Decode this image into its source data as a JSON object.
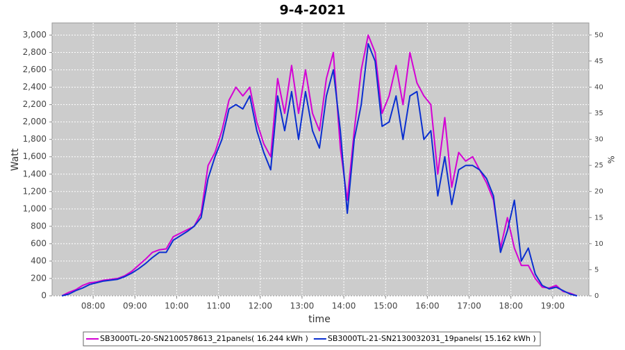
{
  "chart_data": {
    "type": "line",
    "title": "9-4-2021",
    "x_label": "time",
    "y_label": "Watt",
    "y2_label": "%",
    "x": [
      "07:15",
      "07:25",
      "07:35",
      "07:45",
      "07:55",
      "08:05",
      "08:15",
      "08:25",
      "08:35",
      "08:45",
      "08:55",
      "09:05",
      "09:15",
      "09:25",
      "09:35",
      "09:45",
      "09:55",
      "10:05",
      "10:15",
      "10:25",
      "10:35",
      "10:45",
      "10:55",
      "11:05",
      "11:15",
      "11:25",
      "11:35",
      "11:45",
      "11:55",
      "12:05",
      "12:15",
      "12:25",
      "12:35",
      "12:45",
      "12:55",
      "13:05",
      "13:15",
      "13:25",
      "13:35",
      "13:45",
      "13:55",
      "14:05",
      "14:15",
      "14:25",
      "14:35",
      "14:45",
      "14:55",
      "15:05",
      "15:15",
      "15:25",
      "15:35",
      "15:45",
      "15:55",
      "16:05",
      "16:15",
      "16:25",
      "16:35",
      "16:45",
      "16:55",
      "17:05",
      "17:15",
      "17:25",
      "17:35",
      "17:45",
      "17:55",
      "18:05",
      "18:15",
      "18:25",
      "18:35",
      "18:45",
      "18:55",
      "19:05",
      "19:15",
      "19:25",
      "19:35"
    ],
    "series": [
      {
        "name": "SB3000TL-20-SN2100578613_21panels( 16.244 kWh )",
        "color": "#d400d4",
        "values": [
          0,
          40,
          70,
          120,
          150,
          160,
          180,
          190,
          200,
          230,
          280,
          350,
          420,
          500,
          530,
          540,
          680,
          720,
          760,
          800,
          950,
          1500,
          1650,
          1900,
          2250,
          2400,
          2300,
          2400,
          2000,
          1750,
          1600,
          2500,
          2100,
          2650,
          2100,
          2600,
          2100,
          1900,
          2500,
          2800,
          1700,
          1100,
          1900,
          2600,
          3000,
          2800,
          2100,
          2300,
          2650,
          2200,
          2800,
          2450,
          2300,
          2200,
          1400,
          2050,
          1250,
          1650,
          1550,
          1600,
          1450,
          1300,
          1100,
          550,
          900,
          550,
          350,
          350,
          200,
          100,
          90,
          120,
          50,
          30,
          0
        ]
      },
      {
        "name": "SB3000TL-21-SN2130032031_19panels( 15.162 kWh )",
        "color": "#0a2fd0",
        "values": [
          0,
          20,
          60,
          90,
          130,
          150,
          170,
          180,
          190,
          220,
          260,
          310,
          370,
          440,
          500,
          500,
          640,
          690,
          740,
          800,
          900,
          1350,
          1600,
          1800,
          2150,
          2200,
          2150,
          2300,
          1900,
          1650,
          1450,
          2300,
          1900,
          2350,
          1800,
          2350,
          1900,
          1700,
          2300,
          2600,
          1900,
          950,
          1800,
          2200,
          2900,
          2700,
          1950,
          2000,
          2300,
          1800,
          2300,
          2350,
          1800,
          1900,
          1150,
          1600,
          1050,
          1450,
          1500,
          1500,
          1450,
          1350,
          1150,
          500,
          750,
          1100,
          400,
          550,
          250,
          120,
          80,
          100,
          60,
          20,
          0
        ]
      }
    ],
    "xlim": [
      "07:01",
      "19:52"
    ],
    "xticks": [
      "08:00",
      "09:00",
      "10:00",
      "11:00",
      "12:00",
      "13:00",
      "14:00",
      "15:00",
      "16:00",
      "17:00",
      "18:00",
      "19:00"
    ],
    "ylim": [
      0,
      3140
    ],
    "yticks": [
      0,
      200,
      400,
      600,
      800,
      {
        "value": 1000,
        "label": "1,000"
      },
      {
        "value": 1200,
        "label": "1,200"
      },
      {
        "value": 1400,
        "label": "1,400"
      },
      {
        "value": 1600,
        "label": "1,600"
      },
      {
        "value": 1800,
        "label": "1,800"
      },
      {
        "value": 2000,
        "label": "2,000"
      },
      {
        "value": 2200,
        "label": "2,200"
      },
      {
        "value": 2400,
        "label": "2,400"
      },
      {
        "value": 2600,
        "label": "2,600"
      },
      {
        "value": 2800,
        "label": "2,800"
      },
      {
        "value": 3000,
        "label": "3,000"
      }
    ],
    "y2lim": [
      0,
      52.3
    ],
    "y2ticks": [
      0,
      5,
      10,
      15,
      20,
      25,
      30,
      35,
      40,
      45,
      50
    ],
    "grid": true
  }
}
